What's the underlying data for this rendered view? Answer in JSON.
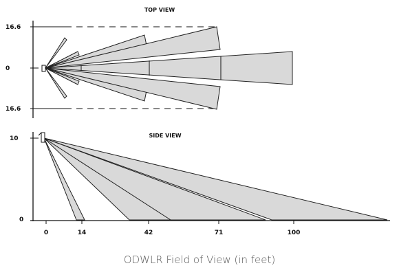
{
  "top_view": {
    "title": "TOP VIEW",
    "y_ticks": [
      "16.6",
      "0",
      "16.6"
    ]
  },
  "side_view": {
    "title": "SIDE VIEW",
    "y_ticks": [
      "10",
      "0"
    ],
    "x_ticks": [
      "0",
      "14",
      "42",
      "71",
      "100"
    ]
  },
  "caption": "ODWLR Field of View (in feet)"
}
